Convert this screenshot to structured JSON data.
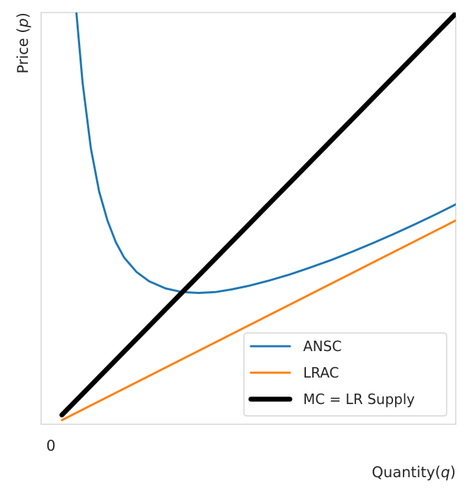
{
  "chart_data": {
    "type": "line",
    "xlabel_text": "Quantity(",
    "xlabel_var": "q",
    "xlabel_close": ")",
    "ylabel_text": "Price (",
    "ylabel_var": "p",
    "ylabel_close": ")",
    "x_tick_label": "0",
    "xlim": [
      0,
      10
    ],
    "ylim": [
      0,
      20
    ],
    "grid": false,
    "legend_position": "lower-right",
    "series": [
      {
        "name": "ANSC",
        "color": "#1f77b4",
        "points": [
          [
            0.85,
            20.0
          ],
          [
            1.0,
            16.6
          ],
          [
            1.2,
            13.4
          ],
          [
            1.4,
            11.3
          ],
          [
            1.6,
            9.9
          ],
          [
            1.8,
            8.85
          ],
          [
            2.0,
            8.1
          ],
          [
            2.3,
            7.4
          ],
          [
            2.6,
            6.95
          ],
          [
            3.0,
            6.6
          ],
          [
            3.4,
            6.42
          ],
          [
            3.8,
            6.38
          ],
          [
            4.2,
            6.42
          ],
          [
            4.6,
            6.55
          ],
          [
            5.0,
            6.72
          ],
          [
            5.5,
            6.98
          ],
          [
            6.0,
            7.28
          ],
          [
            6.5,
            7.62
          ],
          [
            7.0,
            7.98
          ],
          [
            7.5,
            8.38
          ],
          [
            8.0,
            8.8
          ],
          [
            8.5,
            9.24
          ],
          [
            9.0,
            9.7
          ],
          [
            9.5,
            10.18
          ],
          [
            10.0,
            10.68
          ]
        ]
      },
      {
        "name": "LRAC",
        "color": "#ff7f0e",
        "points": [
          [
            0.5,
            0.2
          ],
          [
            10.0,
            9.9
          ]
        ]
      },
      {
        "name": "MC = LR Supply",
        "color": "#000000",
        "points": [
          [
            0.5,
            0.45
          ],
          [
            10.0,
            19.95
          ]
        ]
      }
    ]
  }
}
